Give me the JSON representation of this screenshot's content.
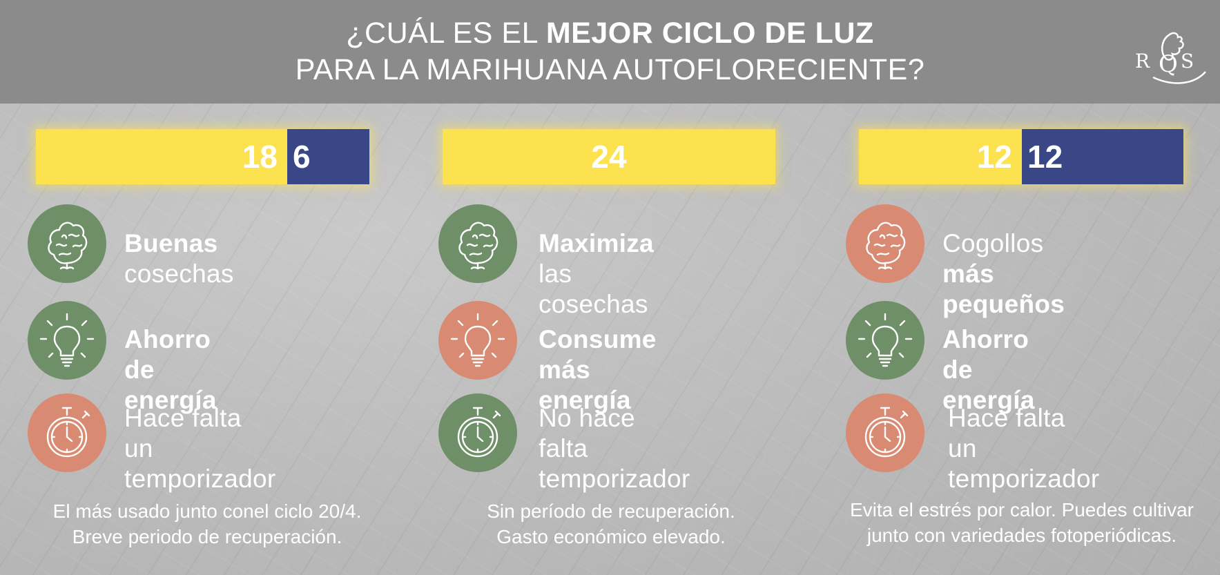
{
  "header": {
    "title_line1_pre": "¿CUÁL ES EL ",
    "title_line1_bold": "MEJOR CICLO DE LUZ",
    "title_line2": "PARA LA MARIHUANA AUTOFLORECIENTE?",
    "logo_text": "RQS"
  },
  "colors": {
    "yellow": "#fde24f",
    "blue": "#3a4786",
    "green": "#6f8f68",
    "red": "#d98a72"
  },
  "cycles": [
    {
      "light": "18",
      "dark": "6",
      "light_fraction": 0.75,
      "items": [
        {
          "icon": "bud-icon",
          "tone": "green",
          "bold": "Buenas",
          "text": " cosechas"
        },
        {
          "icon": "lightbulb-icon",
          "tone": "green",
          "bold": "Ahorro de energía",
          "text": ""
        },
        {
          "icon": "stopwatch-icon",
          "tone": "red",
          "line1": "Hace falta un",
          "line2": "temporizador"
        }
      ],
      "note_line1": "El más usado junto conel ciclo 20/4.",
      "note_line2": "Breve periodo de recuperación."
    },
    {
      "light": "24",
      "dark": "",
      "light_fraction": 1.0,
      "items": [
        {
          "icon": "bud-icon",
          "tone": "green",
          "bold": "Maximiza",
          "text": " las cosechas"
        },
        {
          "icon": "lightbulb-icon",
          "tone": "red",
          "bold": "Consume más energía",
          "text": ""
        },
        {
          "icon": "stopwatch-icon",
          "tone": "green",
          "line1": "No hace falta",
          "line2": "temporizador"
        }
      ],
      "note_line1": "Sin período de recuperación.",
      "note_line2": "Gasto económico elevado."
    },
    {
      "light": "12",
      "dark": "12",
      "light_fraction": 0.5,
      "items": [
        {
          "icon": "bud-icon",
          "tone": "red",
          "pre": "Cogollos ",
          "bold": "más pequeños"
        },
        {
          "icon": "lightbulb-icon",
          "tone": "green",
          "bold": "Ahorro de energía",
          "text": ""
        },
        {
          "icon": "stopwatch-icon",
          "tone": "red",
          "line1": "Hace falta un",
          "line2": "temporizador"
        }
      ],
      "note_line1": "Evita el estrés por calor. Puedes cultivar",
      "note_line2": "junto con variedades fotoperiódicas."
    }
  ]
}
